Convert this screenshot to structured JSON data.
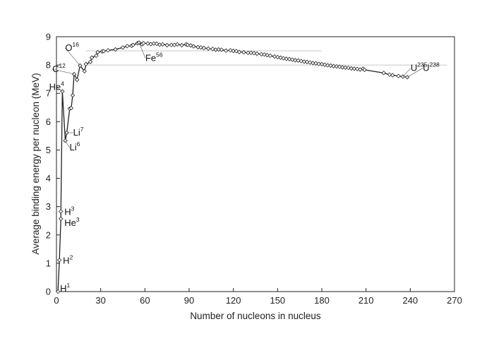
{
  "chart_data": {
    "type": "line",
    "title": "",
    "xlabel": "Number of nucleons in nucleus",
    "ylabel": "Average binding energy per nucleon (MeV)",
    "xlim": [
      0,
      270
    ],
    "ylim": [
      0,
      9
    ],
    "xticks": [
      "0",
      "30",
      "60",
      "90",
      "120",
      "150",
      "180",
      "210",
      "240",
      "270"
    ],
    "yticks": [
      "0",
      "1",
      "2",
      "3",
      "4",
      "5",
      "6",
      "7",
      "8",
      "9"
    ],
    "grid": false,
    "series": [
      {
        "marker": "diamond",
        "color": "#222222",
        "x": [
          1,
          2,
          3,
          3,
          4,
          6,
          7,
          9,
          10,
          11,
          12,
          14,
          16,
          19,
          20,
          23,
          24,
          27,
          28,
          31,
          32,
          35,
          40,
          45,
          48,
          51,
          52,
          55,
          56,
          58,
          59,
          62,
          64,
          66,
          68,
          70,
          72,
          75,
          78,
          80,
          82,
          85,
          88,
          89,
          91,
          93,
          96,
          98,
          100,
          103,
          106,
          108,
          110,
          112,
          115,
          118,
          120,
          122,
          124,
          127,
          130,
          132,
          134,
          136,
          139,
          141,
          143,
          145,
          148,
          150,
          152,
          154,
          156,
          158,
          160,
          162,
          164,
          166,
          168,
          170,
          172,
          174,
          176,
          178,
          180,
          182,
          184,
          186,
          188,
          190,
          192,
          194,
          196,
          198,
          200,
          202,
          204,
          206,
          208,
          209,
          222,
          226,
          228,
          232,
          235,
          238
        ],
        "y": [
          0,
          1.11,
          2.57,
          2.83,
          7.07,
          5.33,
          5.61,
          6.46,
          6.48,
          6.93,
          7.68,
          7.48,
          7.98,
          7.78,
          8.03,
          8.11,
          8.26,
          8.33,
          8.45,
          8.48,
          8.49,
          8.52,
          8.55,
          8.62,
          8.67,
          8.68,
          8.71,
          8.77,
          8.79,
          8.73,
          8.77,
          8.76,
          8.74,
          8.76,
          8.75,
          8.72,
          8.73,
          8.7,
          8.71,
          8.71,
          8.73,
          8.7,
          8.73,
          8.71,
          8.69,
          8.66,
          8.63,
          8.62,
          8.6,
          8.58,
          8.57,
          8.54,
          8.55,
          8.54,
          8.51,
          8.52,
          8.5,
          8.49,
          8.46,
          8.45,
          8.43,
          8.43,
          8.42,
          8.4,
          8.38,
          8.37,
          8.35,
          8.33,
          8.3,
          8.28,
          8.26,
          8.24,
          8.22,
          8.21,
          8.19,
          8.17,
          8.16,
          8.14,
          8.12,
          8.11,
          8.09,
          8.07,
          8.06,
          8.04,
          8.03,
          8.01,
          7.99,
          7.98,
          7.96,
          7.95,
          7.94,
          7.92,
          7.91,
          7.9,
          7.88,
          7.87,
          7.86,
          7.84,
          7.87,
          7.83,
          7.72,
          7.66,
          7.64,
          7.61,
          7.59,
          7.57
        ]
      }
    ],
    "reference_lines": [
      {
        "y": 8.5,
        "x_start": 20,
        "x_end": 180,
        "color": "#c8c8c8"
      },
      {
        "y": 8.0,
        "x_start": 20,
        "x_end": 265,
        "color": "#c8c8c8"
      }
    ],
    "annotations": [
      {
        "base": "H",
        "sup": "1",
        "x": 1,
        "y": 0
      },
      {
        "base": "H",
        "sup": "2",
        "x": 2,
        "y": 1.11
      },
      {
        "base": "H",
        "sup": "3",
        "x": 3,
        "y": 2.83
      },
      {
        "base": "He",
        "sup": "3",
        "x": 3,
        "y": 2.57
      },
      {
        "base": "He",
        "sup": "4",
        "x": 4,
        "y": 7.07
      },
      {
        "base": "Li",
        "sup": "6",
        "x": 6,
        "y": 5.33
      },
      {
        "base": "Li",
        "sup": "7",
        "x": 7,
        "y": 5.61
      },
      {
        "base": "C",
        "sup": "12",
        "x": 12,
        "y": 7.68
      },
      {
        "base": "O",
        "sup": "16",
        "x": 16,
        "y": 7.98
      },
      {
        "base": "Fe",
        "sup": "56",
        "x": 56,
        "y": 8.79
      },
      {
        "base": "U",
        "sup": "235",
        "x": 235,
        "y": 7.59
      },
      {
        "base": "U",
        "sup": "238",
        "x": 238,
        "y": 7.57
      }
    ]
  }
}
